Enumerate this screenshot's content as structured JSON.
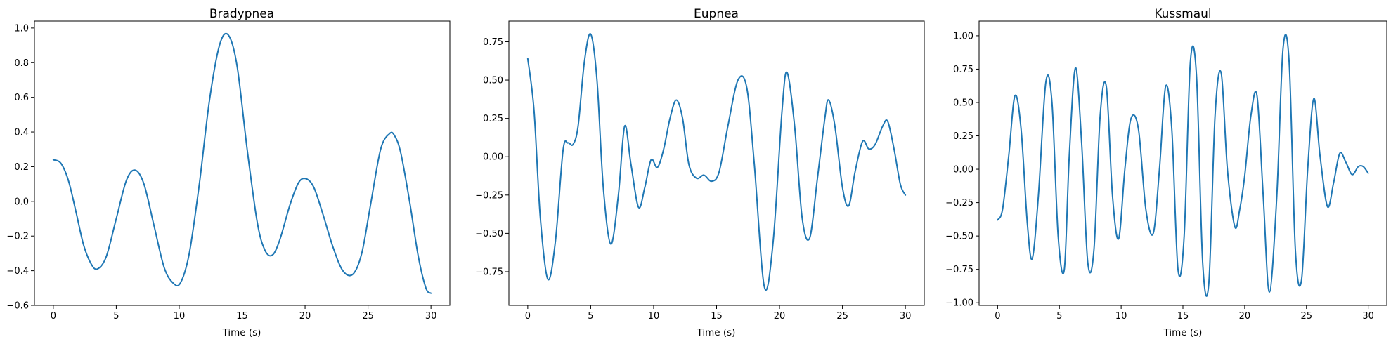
{
  "chart_data": [
    {
      "type": "line",
      "title": "Bradypnea",
      "xlabel": "Time (s)",
      "ylabel": "",
      "xlim": [
        -1.5,
        31.5
      ],
      "ylim": [
        -0.6,
        1.04
      ],
      "xticks": [
        0,
        5,
        10,
        15,
        20,
        25,
        30
      ],
      "yticks": [
        -0.6,
        -0.4,
        -0.2,
        0.0,
        0.2,
        0.4,
        0.6,
        0.8,
        1.0
      ],
      "ytick_labels": [
        "−0.6",
        "−0.4",
        "−0.2",
        "0.0",
        "0.2",
        "0.4",
        "0.6",
        "0.8",
        "1.0"
      ],
      "color": "#1f77b4",
      "series": [
        {
          "x": [
            0,
            0.6,
            1.2,
            1.8,
            2.4,
            3.0,
            3.5,
            4.2,
            5.0,
            5.8,
            6.5,
            7.2,
            8.0,
            8.8,
            9.5,
            10.1,
            10.8,
            11.6,
            12.4,
            13.2,
            13.9,
            14.6,
            15.4,
            16.2,
            16.8,
            17.4,
            18.0,
            18.8,
            19.5,
            20.1,
            20.7,
            21.4,
            22.2,
            23.0,
            23.8,
            24.5,
            25.2,
            26.0,
            26.7,
            27.1,
            27.6,
            28.3,
            29.0,
            29.6,
            30.0
          ],
          "y": [
            0.24,
            0.22,
            0.12,
            -0.06,
            -0.25,
            -0.36,
            -0.39,
            -0.32,
            -0.1,
            0.12,
            0.18,
            0.1,
            -0.14,
            -0.38,
            -0.47,
            -0.47,
            -0.3,
            0.1,
            0.58,
            0.9,
            0.96,
            0.78,
            0.3,
            -0.12,
            -0.28,
            -0.31,
            -0.22,
            -0.02,
            0.11,
            0.13,
            0.08,
            -0.07,
            -0.26,
            -0.4,
            -0.42,
            -0.3,
            -0.02,
            0.3,
            0.39,
            0.38,
            0.28,
            0.0,
            -0.32,
            -0.5,
            -0.53
          ]
        }
      ]
    },
    {
      "type": "line",
      "title": "Eupnea",
      "xlabel": "Time (s)",
      "ylabel": "",
      "xlim": [
        -1.5,
        31.5
      ],
      "ylim": [
        -0.97,
        0.885
      ],
      "xticks": [
        0,
        5,
        10,
        15,
        20,
        25,
        30
      ],
      "yticks": [
        -0.75,
        -0.5,
        -0.25,
        0.0,
        0.25,
        0.5,
        0.75
      ],
      "ytick_labels": [
        "−0.75",
        "−0.50",
        "−0.25",
        "0.00",
        "0.25",
        "0.50",
        "0.75"
      ],
      "color": "#1f77b4",
      "series": [
        {
          "x": [
            0,
            0.5,
            1.0,
            1.6,
            2.2,
            2.8,
            3.2,
            3.6,
            4.0,
            4.5,
            5.0,
            5.5,
            6.0,
            6.6,
            7.2,
            7.7,
            8.2,
            8.8,
            9.3,
            9.8,
            10.3,
            10.8,
            11.3,
            11.8,
            12.3,
            12.8,
            13.4,
            14.0,
            14.6,
            15.2,
            15.9,
            16.7,
            17.4,
            18.0,
            18.8,
            19.5,
            20.2,
            20.6,
            21.2,
            21.8,
            22.4,
            23.0,
            23.6,
            23.9,
            24.4,
            25.0,
            25.5,
            26.0,
            26.6,
            27.1,
            27.6,
            28.2,
            28.6,
            29.1,
            29.6,
            30.0
          ],
          "y": [
            0.64,
            0.3,
            -0.4,
            -0.8,
            -0.55,
            0.04,
            0.09,
            0.08,
            0.2,
            0.62,
            0.8,
            0.5,
            -0.2,
            -0.57,
            -0.25,
            0.2,
            -0.05,
            -0.33,
            -0.2,
            -0.02,
            -0.07,
            0.05,
            0.25,
            0.37,
            0.25,
            -0.05,
            -0.14,
            -0.12,
            -0.16,
            -0.1,
            0.2,
            0.5,
            0.45,
            -0.05,
            -0.85,
            -0.55,
            0.3,
            0.55,
            0.2,
            -0.4,
            -0.53,
            -0.15,
            0.25,
            0.37,
            0.2,
            -0.2,
            -0.32,
            -0.1,
            0.1,
            0.05,
            0.08,
            0.2,
            0.23,
            0.05,
            -0.18,
            -0.25
          ]
        }
      ]
    },
    {
      "type": "line",
      "title": "Kussmaul",
      "xlabel": "Time (s)",
      "ylabel": "",
      "xlim": [
        -1.5,
        31.5
      ],
      "ylim": [
        -1.02,
        1.11
      ],
      "xticks": [
        0,
        5,
        10,
        15,
        20,
        25,
        30
      ],
      "yticks": [
        -1.0,
        -0.75,
        -0.5,
        -0.25,
        0.0,
        0.25,
        0.5,
        0.75,
        1.0
      ],
      "ytick_labels": [
        "−1.00",
        "−0.75",
        "−0.50",
        "−0.25",
        "0.00",
        "0.25",
        "0.50",
        "0.75",
        "1.00"
      ],
      "color": "#1f77b4",
      "series": [
        {
          "x": [
            0,
            0.4,
            0.9,
            1.4,
            1.9,
            2.4,
            2.8,
            3.3,
            3.9,
            4.4,
            4.9,
            5.4,
            5.8,
            6.3,
            6.8,
            7.3,
            7.8,
            8.3,
            8.8,
            9.3,
            9.8,
            10.3,
            10.8,
            11.4,
            12.0,
            12.6,
            13.1,
            13.6,
            14.1,
            14.6,
            15.1,
            15.6,
            16.1,
            16.6,
            17.1,
            17.6,
            18.1,
            18.6,
            19.2,
            19.6,
            20.0,
            20.5,
            21.0,
            21.5,
            22.0,
            22.6,
            23.1,
            23.6,
            24.1,
            24.6,
            25.1,
            25.6,
            26.1,
            26.7,
            27.2,
            27.7,
            28.2,
            28.7,
            29.2,
            29.6,
            30.0
          ],
          "y": [
            -0.38,
            -0.3,
            0.1,
            0.55,
            0.3,
            -0.4,
            -0.67,
            -0.2,
            0.65,
            0.5,
            -0.5,
            -0.75,
            0.1,
            0.76,
            0.2,
            -0.7,
            -0.6,
            0.4,
            0.62,
            -0.2,
            -0.52,
            0.0,
            0.38,
            0.3,
            -0.3,
            -0.48,
            0.0,
            0.62,
            0.3,
            -0.75,
            -0.5,
            0.8,
            0.7,
            -0.7,
            -0.85,
            0.4,
            0.72,
            0.0,
            -0.43,
            -0.3,
            -0.05,
            0.4,
            0.55,
            -0.2,
            -0.92,
            -0.2,
            0.9,
            0.8,
            -0.6,
            -0.83,
            0.0,
            0.53,
            0.1,
            -0.28,
            -0.1,
            0.12,
            0.05,
            -0.04,
            0.02,
            0.02,
            -0.03
          ]
        }
      ]
    }
  ]
}
